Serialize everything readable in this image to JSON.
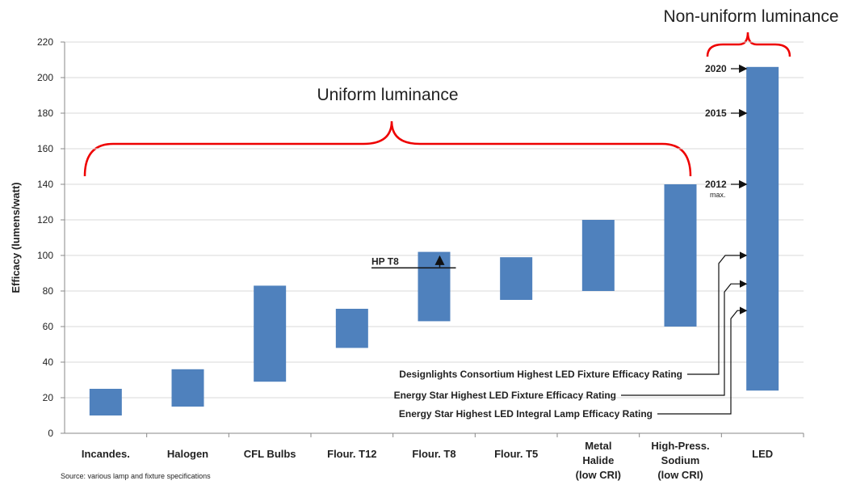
{
  "chart_data": {
    "type": "floating_bar",
    "y_label": "Efficacy (lumens/watt)",
    "categories": [
      [
        "Incandes."
      ],
      [
        "Halogen"
      ],
      [
        "CFL Bulbs"
      ],
      [
        "Flour. T12"
      ],
      [
        "Flour. T8"
      ],
      [
        "Flour. T5"
      ],
      [
        "Metal",
        "Halide",
        "(low CRI)"
      ],
      [
        "High-Press.",
        "Sodium",
        "(low CRI)"
      ],
      [
        "LED"
      ]
    ],
    "low": [
      10,
      15,
      29,
      48,
      63,
      75,
      80,
      60,
      24
    ],
    "high": [
      25,
      36,
      83,
      70,
      102,
      99,
      120,
      140,
      206
    ],
    "color": "#4f81bd",
    "ylim": [
      0,
      220
    ],
    "yticks": [
      0,
      20,
      40,
      60,
      80,
      100,
      120,
      140,
      160,
      180,
      200,
      220
    ],
    "grid": true,
    "annotations": {
      "uniform": "Uniform luminance",
      "non_uniform": "Non-uniform luminance",
      "hp_t8": {
        "label": "HP T8",
        "value": 93
      },
      "years": [
        {
          "label": "2020",
          "value": 205
        },
        {
          "label": "2015",
          "value": 180
        },
        {
          "label": "2012",
          "value": 140,
          "note": "max."
        }
      ],
      "ratings": [
        {
          "label": "Designlights Consortium Highest LED Fixture Efficacy Rating",
          "value": 100
        },
        {
          "label": "Energy Star Highest LED Fixture Efficacy Rating",
          "value": 84
        },
        {
          "label": "Energy Star Highest LED Integral Lamp Efficacy Rating",
          "value": 69
        }
      ]
    },
    "source": "Source: various lamp and fixture specifications"
  }
}
